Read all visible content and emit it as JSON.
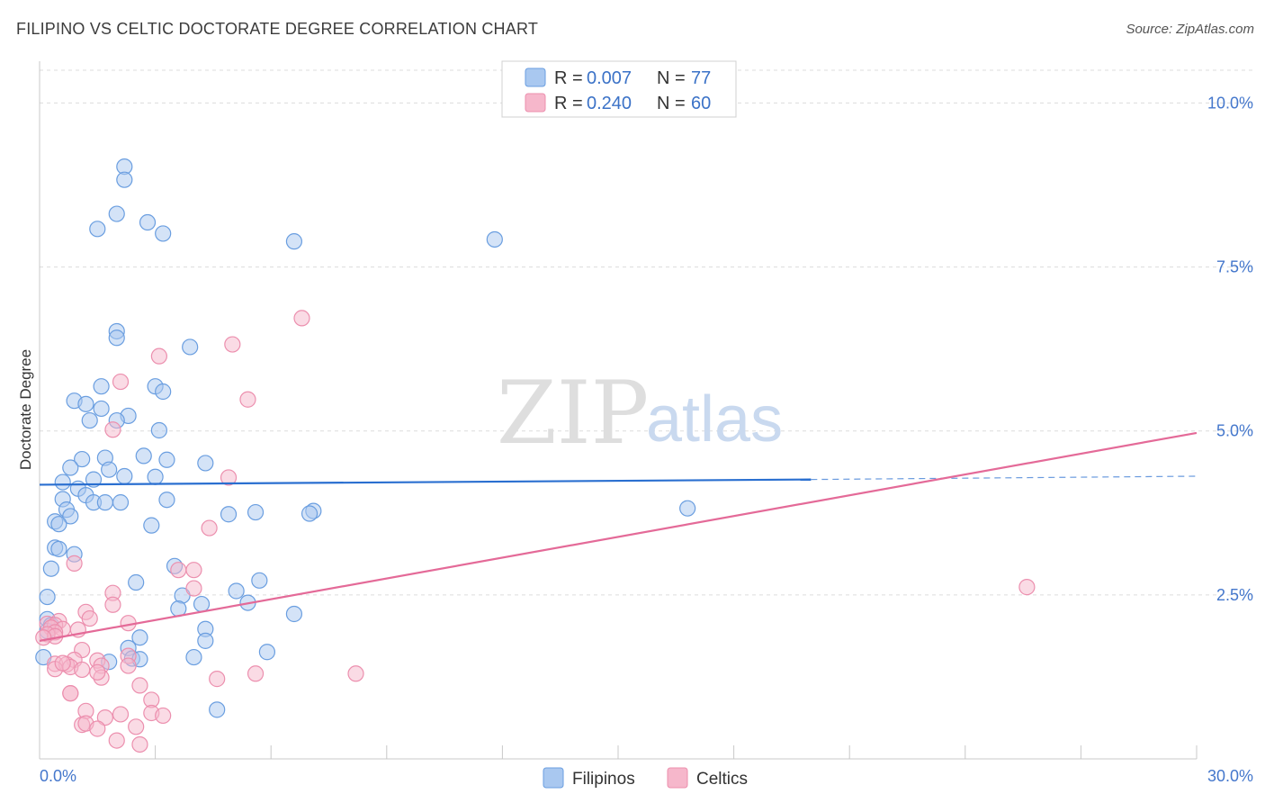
{
  "header": {
    "title": "FILIPINO VS CELTIC DOCTORATE DEGREE CORRELATION CHART",
    "source": "Source: ZipAtlas.com"
  },
  "watermark": {
    "zip": "ZIP",
    "atlas": "atlas"
  },
  "colors": {
    "filipino_fill": "#a9c8f0",
    "filipino_stroke": "#6a9ee0",
    "filipino_line": "#2a6fd0",
    "celtic_fill": "#f6b7cb",
    "celtic_stroke": "#ec8fae",
    "celtic_line": "#e46a98",
    "grid": "#dcdcdc",
    "tick": "#4477cc"
  },
  "legend": {
    "r_label": "R =",
    "n_label": "N =",
    "filipino_r": "0.007",
    "filipino_n": "77",
    "celtic_r": "0.240",
    "celtic_n": "60"
  },
  "bottom_legend": {
    "filipinos": "Filipinos",
    "celtics": "Celtics"
  },
  "chart_data": {
    "type": "scatter",
    "title": "FILIPINO VS CELTIC DOCTORATE DEGREE CORRELATION CHART",
    "xlabel": "",
    "ylabel": "Doctorate Degree",
    "xlim": [
      0,
      30
    ],
    "ylim": [
      0,
      10.5
    ],
    "x_tick_labels": [
      "0.0%",
      "30.0%"
    ],
    "y_ticks": [
      2.5,
      5.0,
      7.5,
      10.0
    ],
    "y_tick_labels": [
      "2.5%",
      "5.0%",
      "7.5%",
      "10.0%"
    ],
    "grid": true,
    "legend_position": "top-center",
    "series": [
      {
        "name": "Filipinos",
        "r": 0.007,
        "n": 77,
        "trend": {
          "x": [
            0,
            20
          ],
          "y": [
            4.18,
            4.26
          ],
          "dashed_to_x": 30,
          "dashed_to_y": 4.31
        },
        "points": [
          [
            2.2,
            9.03
          ],
          [
            2.2,
            8.83
          ],
          [
            2.0,
            8.31
          ],
          [
            1.5,
            8.08
          ],
          [
            2.8,
            8.18
          ],
          [
            3.2,
            8.01
          ],
          [
            6.6,
            7.89
          ],
          [
            11.8,
            7.92
          ],
          [
            2.0,
            6.52
          ],
          [
            2.0,
            6.42
          ],
          [
            3.9,
            6.28
          ],
          [
            1.6,
            5.68
          ],
          [
            3.0,
            5.68
          ],
          [
            3.2,
            5.6
          ],
          [
            0.9,
            5.46
          ],
          [
            1.2,
            5.41
          ],
          [
            1.6,
            5.34
          ],
          [
            2.3,
            5.23
          ],
          [
            1.3,
            5.16
          ],
          [
            2.0,
            5.16
          ],
          [
            3.1,
            5.01
          ],
          [
            1.1,
            4.57
          ],
          [
            1.7,
            4.59
          ],
          [
            2.7,
            4.62
          ],
          [
            3.3,
            4.56
          ],
          [
            4.3,
            4.51
          ],
          [
            0.8,
            4.44
          ],
          [
            1.8,
            4.41
          ],
          [
            2.2,
            4.31
          ],
          [
            3.0,
            4.3
          ],
          [
            1.4,
            4.26
          ],
          [
            0.6,
            4.22
          ],
          [
            1.0,
            4.12
          ],
          [
            1.2,
            4.02
          ],
          [
            0.6,
            3.96
          ],
          [
            1.4,
            3.91
          ],
          [
            1.7,
            3.91
          ],
          [
            2.1,
            3.91
          ],
          [
            3.3,
            3.95
          ],
          [
            0.7,
            3.8
          ],
          [
            0.8,
            3.7
          ],
          [
            4.9,
            3.73
          ],
          [
            5.6,
            3.76
          ],
          [
            7.1,
            3.78
          ],
          [
            7.0,
            3.74
          ],
          [
            16.8,
            3.82
          ],
          [
            0.4,
            3.62
          ],
          [
            0.5,
            3.58
          ],
          [
            2.9,
            3.56
          ],
          [
            0.4,
            3.22
          ],
          [
            0.5,
            3.2
          ],
          [
            0.9,
            3.12
          ],
          [
            3.5,
            2.94
          ],
          [
            0.3,
            2.9
          ],
          [
            2.5,
            2.69
          ],
          [
            5.7,
            2.72
          ],
          [
            0.2,
            2.47
          ],
          [
            5.1,
            2.56
          ],
          [
            3.7,
            2.49
          ],
          [
            5.4,
            2.38
          ],
          [
            4.2,
            2.36
          ],
          [
            3.6,
            2.29
          ],
          [
            6.6,
            2.21
          ],
          [
            0.2,
            2.13
          ],
          [
            0.3,
            2.04
          ],
          [
            4.3,
            1.98
          ],
          [
            2.6,
            1.85
          ],
          [
            4.3,
            1.8
          ],
          [
            2.3,
            1.69
          ],
          [
            5.9,
            1.63
          ],
          [
            4.0,
            1.55
          ],
          [
            2.4,
            1.53
          ],
          [
            2.6,
            1.52
          ],
          [
            0.1,
            1.55
          ],
          [
            4.6,
            0.75
          ],
          [
            0.2,
            1.95
          ],
          [
            1.8,
            1.48
          ]
        ]
      },
      {
        "name": "Celtics",
        "r": 0.24,
        "n": 60,
        "trend": {
          "x": [
            0,
            30
          ],
          "y": [
            1.8,
            4.97
          ]
        },
        "points": [
          [
            6.8,
            6.72
          ],
          [
            5.0,
            6.32
          ],
          [
            3.1,
            6.14
          ],
          [
            2.1,
            5.75
          ],
          [
            5.4,
            5.48
          ],
          [
            1.9,
            5.02
          ],
          [
            4.9,
            4.29
          ],
          [
            4.4,
            3.52
          ],
          [
            0.9,
            2.98
          ],
          [
            3.6,
            2.88
          ],
          [
            4.0,
            2.88
          ],
          [
            1.9,
            2.53
          ],
          [
            4.0,
            2.6
          ],
          [
            1.9,
            2.35
          ],
          [
            1.2,
            2.24
          ],
          [
            1.3,
            2.14
          ],
          [
            0.5,
            2.1
          ],
          [
            0.2,
            2.06
          ],
          [
            0.4,
            2.04
          ],
          [
            0.3,
            2.0
          ],
          [
            1.0,
            1.97
          ],
          [
            0.6,
            1.98
          ],
          [
            0.4,
            1.93
          ],
          [
            2.3,
            2.07
          ],
          [
            0.2,
            1.9
          ],
          [
            0.4,
            1.87
          ],
          [
            0.1,
            1.85
          ],
          [
            1.1,
            1.66
          ],
          [
            0.9,
            1.51
          ],
          [
            1.5,
            1.5
          ],
          [
            0.4,
            1.45
          ],
          [
            0.7,
            1.44
          ],
          [
            0.8,
            1.4
          ],
          [
            0.4,
            1.37
          ],
          [
            1.6,
            1.42
          ],
          [
            2.3,
            1.57
          ],
          [
            2.3,
            1.42
          ],
          [
            1.1,
            1.36
          ],
          [
            1.6,
            1.24
          ],
          [
            4.6,
            1.22
          ],
          [
            5.6,
            1.3
          ],
          [
            8.2,
            1.3
          ],
          [
            2.6,
            1.12
          ],
          [
            0.8,
            1.0
          ],
          [
            0.8,
            1.0
          ],
          [
            2.9,
            0.9
          ],
          [
            1.2,
            0.73
          ],
          [
            2.9,
            0.7
          ],
          [
            3.2,
            0.66
          ],
          [
            1.7,
            0.63
          ],
          [
            2.1,
            0.68
          ],
          [
            1.1,
            0.52
          ],
          [
            1.2,
            0.54
          ],
          [
            1.5,
            0.46
          ],
          [
            2.5,
            0.49
          ],
          [
            2.0,
            0.28
          ],
          [
            2.6,
            0.22
          ],
          [
            25.6,
            2.62
          ],
          [
            1.5,
            1.32
          ],
          [
            0.6,
            1.46
          ]
        ]
      }
    ]
  }
}
